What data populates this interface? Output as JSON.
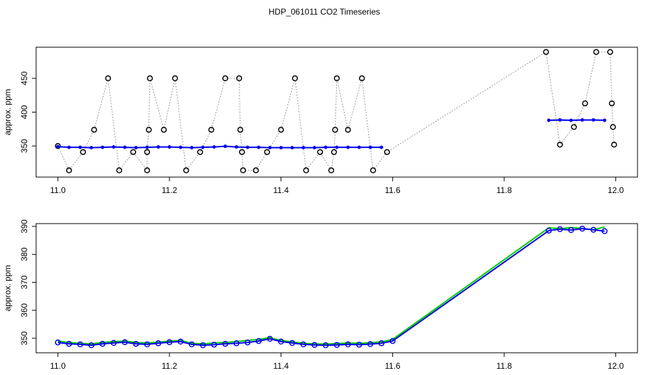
{
  "title": "HDP_061011  CO2 Timeseries",
  "chart_data": [
    {
      "type": "line",
      "ylabel": "approx. ppm",
      "xlim": [
        10.961,
        12.039
      ],
      "ylim": [
        304,
        496
      ],
      "xticks": [
        {
          "value": 11,
          "label": "11.0"
        },
        11.2,
        11.4,
        11.6,
        11.8,
        {
          "value": 12,
          "label": "12.0"
        }
      ],
      "yticks": [
        350,
        400,
        450
      ],
      "series": [
        {
          "color": "#000000",
          "line_color": "#999999",
          "line_dash": "2,2",
          "marker": "circle",
          "x": [
            11.0,
            11.02,
            11.045,
            11.065,
            11.09,
            11.11,
            11.135,
            11.16,
            11.16,
            11.163,
            11.165,
            11.19,
            11.21,
            11.23,
            11.255,
            11.275,
            11.3,
            11.325,
            11.327,
            11.33,
            11.332,
            11.355,
            11.375,
            11.4,
            11.425,
            11.445,
            11.47,
            11.49,
            11.495,
            11.497,
            11.5,
            11.52,
            11.545,
            11.565,
            11.59,
            11.875,
            11.9,
            11.925,
            11.945,
            11.965,
            11.99,
            11.993,
            11.995,
            11.997
          ],
          "values": [
            350,
            314,
            341,
            374,
            450,
            314,
            341,
            314,
            341,
            374,
            450,
            374,
            450,
            314,
            341,
            374,
            450,
            450,
            374,
            341,
            314,
            314,
            341,
            374,
            450,
            314,
            341,
            314,
            341,
            374,
            450,
            374,
            450,
            314,
            341,
            489,
            352,
            378,
            413,
            489,
            489,
            413,
            378,
            352
          ]
        },
        {
          "color": "#0000ee",
          "line_color": "#0000ee",
          "line_dash": "",
          "marker": "dot",
          "x": [
            11.0,
            11.02,
            11.04,
            11.06,
            11.08,
            11.1,
            11.12,
            11.14,
            11.16,
            11.18,
            11.2,
            11.22,
            11.24,
            11.26,
            11.28,
            11.3,
            11.32,
            11.34,
            11.36,
            11.38,
            11.4,
            11.42,
            11.44,
            11.46,
            11.48,
            11.5,
            11.52,
            11.54,
            11.56,
            11.58,
            11.73,
            11.88,
            11.9,
            11.92,
            11.94,
            11.96,
            11.98
          ],
          "values": [
            349,
            348,
            348,
            347.5,
            348,
            348.5,
            348,
            347.5,
            348,
            348.5,
            348.5,
            348,
            347.5,
            348,
            348.5,
            349.5,
            348.5,
            348,
            348,
            347.5,
            347.5,
            347.5,
            347.5,
            347.5,
            348,
            348,
            348,
            348,
            348,
            348,
            null,
            388,
            388.5,
            388,
            388.5,
            388.5,
            388
          ]
        }
      ]
    },
    {
      "type": "line",
      "ylabel": "approx. ppm",
      "xlim": [
        10.961,
        12.039
      ],
      "ylim": [
        344.8,
        391
      ],
      "xticks": [
        {
          "value": 11,
          "label": "11.0"
        },
        11.2,
        11.4,
        11.6,
        11.8,
        {
          "value": 12,
          "label": "12.0"
        }
      ],
      "yticks": [
        350,
        360,
        370,
        380,
        390
      ],
      "series": [
        {
          "color": "#00cc00",
          "line_color": "#00cc00",
          "line_dash": "",
          "marker": "none",
          "x": [
            11.0,
            11.02,
            11.04,
            11.06,
            11.08,
            11.1,
            11.12,
            11.14,
            11.16,
            11.18,
            11.2,
            11.22,
            11.24,
            11.26,
            11.28,
            11.3,
            11.32,
            11.34,
            11.36,
            11.38,
            11.4,
            11.42,
            11.44,
            11.46,
            11.48,
            11.5,
            11.52,
            11.54,
            11.56,
            11.58,
            11.6,
            11.88,
            11.9,
            11.92,
            11.94,
            11.96,
            11.98
          ],
          "values": [
            349,
            348.5,
            348.2,
            348,
            348.5,
            348.8,
            349,
            348.5,
            348.3,
            348.6,
            349,
            349.2,
            348.2,
            348,
            348.3,
            348.5,
            348.8,
            349.2,
            349.6,
            350.2,
            349.2,
            348.7,
            348.2,
            348,
            347.9,
            348.1,
            348.3,
            348.2,
            348.4,
            348.7,
            349.6,
            389.5,
            389.2,
            389.6,
            389.3,
            388.8,
            389.8
          ]
        },
        {
          "color": "#0000ee",
          "line_color": "#0000ee",
          "line_dash": "",
          "marker": "circle",
          "x": [
            11.0,
            11.02,
            11.04,
            11.06,
            11.08,
            11.1,
            11.12,
            11.14,
            11.16,
            11.18,
            11.2,
            11.22,
            11.24,
            11.26,
            11.28,
            11.3,
            11.32,
            11.34,
            11.36,
            11.38,
            11.4,
            11.42,
            11.44,
            11.46,
            11.48,
            11.5,
            11.52,
            11.54,
            11.56,
            11.58,
            11.6,
            11.88,
            11.9,
            11.92,
            11.94,
            11.96,
            11.98
          ],
          "values": [
            348.5,
            348,
            347.8,
            347.5,
            348,
            348.3,
            348.6,
            348,
            347.8,
            348.2,
            348.6,
            348.8,
            347.8,
            347.5,
            347.7,
            348,
            348.2,
            348.5,
            349,
            349.8,
            348.8,
            348.3,
            347.8,
            347.6,
            347.5,
            347.6,
            347.8,
            347.7,
            347.9,
            348.2,
            349,
            388.5,
            389,
            388.7,
            389.2,
            388.8,
            388.3
          ]
        }
      ]
    }
  ]
}
